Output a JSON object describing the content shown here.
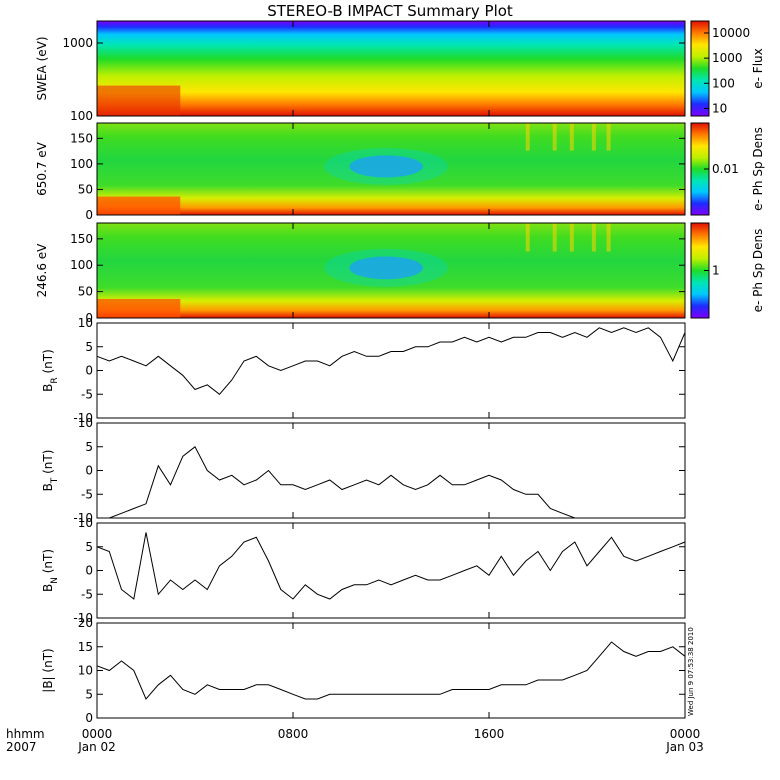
{
  "title": "STEREO-B IMPACT Summary Plot",
  "stamp": "Wed Jun  9 07:53:38 2010",
  "x_axis": {
    "row1_label": "hhmm",
    "row2_label": "2007",
    "ticks": [
      {
        "t": 0,
        "time": "0000",
        "date": "Jan 02"
      },
      {
        "t": 8,
        "time": "0800",
        "date": ""
      },
      {
        "t": 16,
        "time": "1600",
        "date": ""
      },
      {
        "t": 24,
        "time": "0000",
        "date": "Jan 03"
      }
    ],
    "range_hours": [
      0,
      24
    ]
  },
  "colors": {
    "frame": "#000000",
    "trace": "#000000",
    "spectrum": [
      "#7f00ff",
      "#1e2bff",
      "#00c8ff",
      "#00e6b4",
      "#1fdc28",
      "#bff000",
      "#ffe600",
      "#ff7a00",
      "#e01000"
    ]
  },
  "chart_data": [
    {
      "id": "swea",
      "type": "heatmap",
      "ylabel": "SWEA (eV)",
      "yscale": "log",
      "ylim": [
        100,
        2000
      ],
      "yticks": [
        {
          "v": 100,
          "t": "100"
        },
        {
          "v": 1000,
          "t": "1000"
        }
      ],
      "colorbar": {
        "label": "e- Flux",
        "scale": "log",
        "range": [
          5,
          30000
        ],
        "ticks": [
          {
            "v": 10,
            "t": "10"
          },
          {
            "v": 100,
            "t": "100"
          },
          {
            "v": 1000,
            "t": "1000"
          },
          {
            "v": 10000,
            "t": "10000"
          }
        ]
      }
    },
    {
      "id": "pad650",
      "type": "heatmap",
      "ylabel": "650.7 eV",
      "ylim": [
        0,
        180
      ],
      "yticks": [
        {
          "v": 0,
          "t": "0"
        },
        {
          "v": 50,
          "t": "50"
        },
        {
          "v": 100,
          "t": "100"
        },
        {
          "v": 150,
          "t": "150"
        }
      ],
      "colorbar": {
        "label": "e- Ph Sp Dens",
        "scale": "log",
        "range": [
          0.001,
          0.1
        ],
        "ticks": [
          {
            "v": 0.01,
            "t": "0.01"
          }
        ]
      }
    },
    {
      "id": "pad246",
      "type": "heatmap",
      "ylabel": "246.6 eV",
      "ylim": [
        0,
        180
      ],
      "yticks": [
        {
          "v": 0,
          "t": "0"
        },
        {
          "v": 50,
          "t": "50"
        },
        {
          "v": 100,
          "t": "100"
        },
        {
          "v": 150,
          "t": "150"
        }
      ],
      "colorbar": {
        "label": "e- Ph Sp Dens",
        "scale": "log",
        "range": [
          0.1,
          10
        ],
        "ticks": [
          {
            "v": 1,
            "t": "1"
          }
        ]
      }
    },
    {
      "id": "br",
      "type": "line",
      "ylabel_main": "B",
      "ylabel_sub": "R",
      "ylabel_unit": " (nT)",
      "ylim": [
        -10,
        10
      ],
      "yticks": [
        {
          "v": -10,
          "t": "-10"
        },
        {
          "v": -5,
          "t": "-5"
        },
        {
          "v": 0,
          "t": "0"
        },
        {
          "v": 5,
          "t": "5"
        },
        {
          "v": 10,
          "t": "10"
        }
      ],
      "x": [
        0,
        0.5,
        1,
        1.5,
        2,
        2.5,
        3,
        3.5,
        4,
        4.5,
        5,
        5.5,
        6,
        6.5,
        7,
        7.5,
        8,
        8.5,
        9,
        9.5,
        10,
        10.5,
        11,
        11.5,
        12,
        12.5,
        13,
        13.5,
        14,
        14.5,
        15,
        15.5,
        16,
        16.5,
        17,
        17.5,
        18,
        18.5,
        19,
        19.5,
        20,
        20.5,
        21,
        21.5,
        22,
        22.5,
        23,
        23.5,
        24
      ],
      "y": [
        3,
        2,
        3,
        2,
        1,
        3,
        1,
        -1,
        -4,
        -3,
        -5,
        -2,
        2,
        3,
        1,
        0,
        1,
        2,
        2,
        1,
        3,
        4,
        3,
        3,
        4,
        4,
        5,
        5,
        6,
        6,
        7,
        6,
        7,
        6,
        7,
        7,
        8,
        8,
        7,
        8,
        7,
        9,
        8,
        9,
        8,
        9,
        7,
        2,
        8
      ]
    },
    {
      "id": "bt",
      "type": "line",
      "ylabel_main": "B",
      "ylabel_sub": "T",
      "ylabel_unit": " (nT)",
      "ylim": [
        -10,
        10
      ],
      "yticks": [
        {
          "v": -10,
          "t": "-10"
        },
        {
          "v": -5,
          "t": "-5"
        },
        {
          "v": 0,
          "t": "0"
        },
        {
          "v": 5,
          "t": "5"
        },
        {
          "v": 10,
          "t": "10"
        }
      ],
      "x": [
        0,
        0.5,
        1,
        1.5,
        2,
        2.5,
        3,
        3.5,
        4,
        4.5,
        5,
        5.5,
        6,
        6.5,
        7,
        7.5,
        8,
        8.5,
        9,
        9.5,
        10,
        10.5,
        11,
        11.5,
        12,
        12.5,
        13,
        13.5,
        14,
        14.5,
        15,
        15.5,
        16,
        16.5,
        17,
        17.5,
        18,
        18.5,
        19,
        19.5,
        20,
        20.5,
        21,
        21.5,
        22,
        22.5,
        23,
        23.5,
        24
      ],
      "y": [
        -10,
        -10,
        -9,
        -8,
        -7,
        1,
        -3,
        3,
        5,
        0,
        -2,
        -1,
        -3,
        -2,
        0,
        -3,
        -3,
        -4,
        -3,
        -2,
        -4,
        -3,
        -2,
        -3,
        -1,
        -3,
        -4,
        -3,
        -1,
        -3,
        -3,
        -2,
        -1,
        -2,
        -4,
        -5,
        -5,
        -8,
        -9,
        -10,
        -10,
        -10,
        -10,
        -10,
        -10,
        -10,
        -10,
        -10,
        -10
      ]
    },
    {
      "id": "bn",
      "type": "line",
      "ylabel_main": "B",
      "ylabel_sub": "N",
      "ylabel_unit": " (nT)",
      "ylim": [
        -10,
        10
      ],
      "yticks": [
        {
          "v": -10,
          "t": "-10"
        },
        {
          "v": -5,
          "t": "-5"
        },
        {
          "v": 0,
          "t": "0"
        },
        {
          "v": 5,
          "t": "5"
        },
        {
          "v": 10,
          "t": "10"
        }
      ],
      "x": [
        0,
        0.5,
        1,
        1.5,
        2,
        2.5,
        3,
        3.5,
        4,
        4.5,
        5,
        5.5,
        6,
        6.5,
        7,
        7.5,
        8,
        8.5,
        9,
        9.5,
        10,
        10.5,
        11,
        11.5,
        12,
        12.5,
        13,
        13.5,
        14,
        14.5,
        15,
        15.5,
        16,
        16.5,
        17,
        17.5,
        18,
        18.5,
        19,
        19.5,
        20,
        20.5,
        21,
        21.5,
        22,
        22.5,
        23,
        23.5,
        24
      ],
      "y": [
        5,
        4,
        -4,
        -6,
        8,
        -5,
        -2,
        -4,
        -2,
        -4,
        1,
        3,
        6,
        7,
        2,
        -4,
        -6,
        -3,
        -5,
        -6,
        -4,
        -3,
        -3,
        -2,
        -3,
        -2,
        -1,
        -2,
        -2,
        -1,
        0,
        1,
        -1,
        3,
        -1,
        2,
        4,
        0,
        4,
        6,
        1,
        4,
        7,
        3,
        2,
        3,
        4,
        5,
        6
      ]
    },
    {
      "id": "bmag",
      "type": "line",
      "ylabel_main": "|B|",
      "ylabel_sub": "",
      "ylabel_unit": " (nT)",
      "ylim": [
        0,
        20
      ],
      "yticks": [
        {
          "v": 0,
          "t": "0"
        },
        {
          "v": 5,
          "t": "5"
        },
        {
          "v": 10,
          "t": "10"
        },
        {
          "v": 15,
          "t": "15"
        },
        {
          "v": 20,
          "t": "20"
        }
      ],
      "x": [
        0,
        0.5,
        1,
        1.5,
        2,
        2.5,
        3,
        3.5,
        4,
        4.5,
        5,
        5.5,
        6,
        6.5,
        7,
        7.5,
        8,
        8.5,
        9,
        9.5,
        10,
        10.5,
        11,
        11.5,
        12,
        12.5,
        13,
        13.5,
        14,
        14.5,
        15,
        15.5,
        16,
        16.5,
        17,
        17.5,
        18,
        18.5,
        19,
        19.5,
        20,
        20.5,
        21,
        21.5,
        22,
        22.5,
        23,
        23.5,
        24
      ],
      "y": [
        11,
        10,
        12,
        10,
        4,
        7,
        9,
        6,
        5,
        7,
        6,
        6,
        6,
        7,
        7,
        6,
        5,
        4,
        4,
        5,
        5,
        5,
        5,
        5,
        5,
        5,
        5,
        5,
        5,
        6,
        6,
        6,
        6,
        7,
        7,
        7,
        8,
        8,
        8,
        9,
        10,
        13,
        16,
        14,
        13,
        14,
        14,
        15,
        13
      ]
    }
  ]
}
